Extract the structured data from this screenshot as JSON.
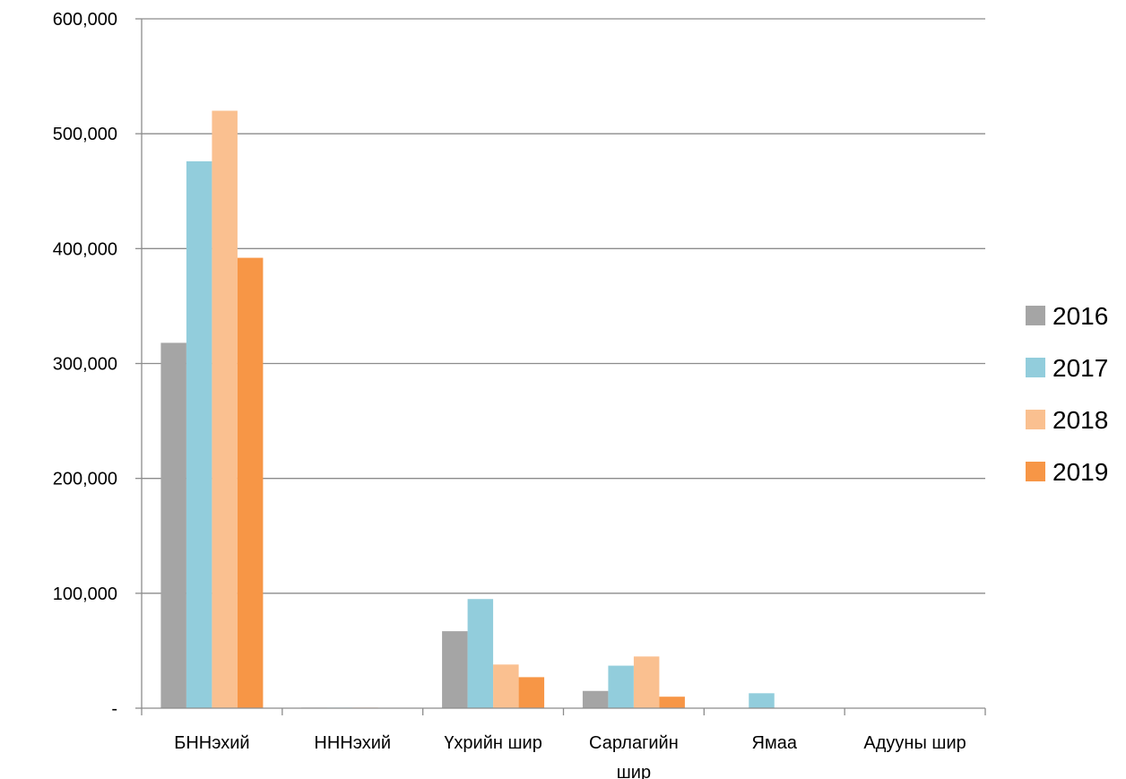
{
  "chart_data": {
    "type": "bar",
    "title": "",
    "xlabel": "",
    "ylabel": "",
    "categories": [
      [
        "БННэхий"
      ],
      [
        "НННэхий"
      ],
      [
        "Үхрийн шир"
      ],
      [
        "Сарлагийн",
        "шир"
      ],
      [
        "Ямаа"
      ],
      [
        "Адууны шир"
      ]
    ],
    "series": [
      {
        "name": "2016",
        "color": "#A5A5A5",
        "values": [
          318000,
          500,
          67000,
          15000,
          0,
          0
        ]
      },
      {
        "name": "2017",
        "color": "#92CDDC",
        "values": [
          476000,
          500,
          95000,
          37000,
          13000,
          0
        ]
      },
      {
        "name": "2018",
        "color": "#FAC090",
        "values": [
          520000,
          500,
          38000,
          45000,
          0,
          0
        ]
      },
      {
        "name": "2019",
        "color": "#F79646",
        "values": [
          392000,
          0,
          27000,
          10000,
          0,
          0
        ]
      }
    ],
    "ylim": [
      0,
      600000
    ],
    "yticks": [
      0,
      100000,
      200000,
      300000,
      400000,
      500000,
      600000
    ],
    "ytick_labels": [
      "-",
      "100,000",
      "200,000",
      "300,000",
      "400,000",
      "500,000",
      "600,000"
    ],
    "grid": true,
    "legend_position": "right"
  }
}
